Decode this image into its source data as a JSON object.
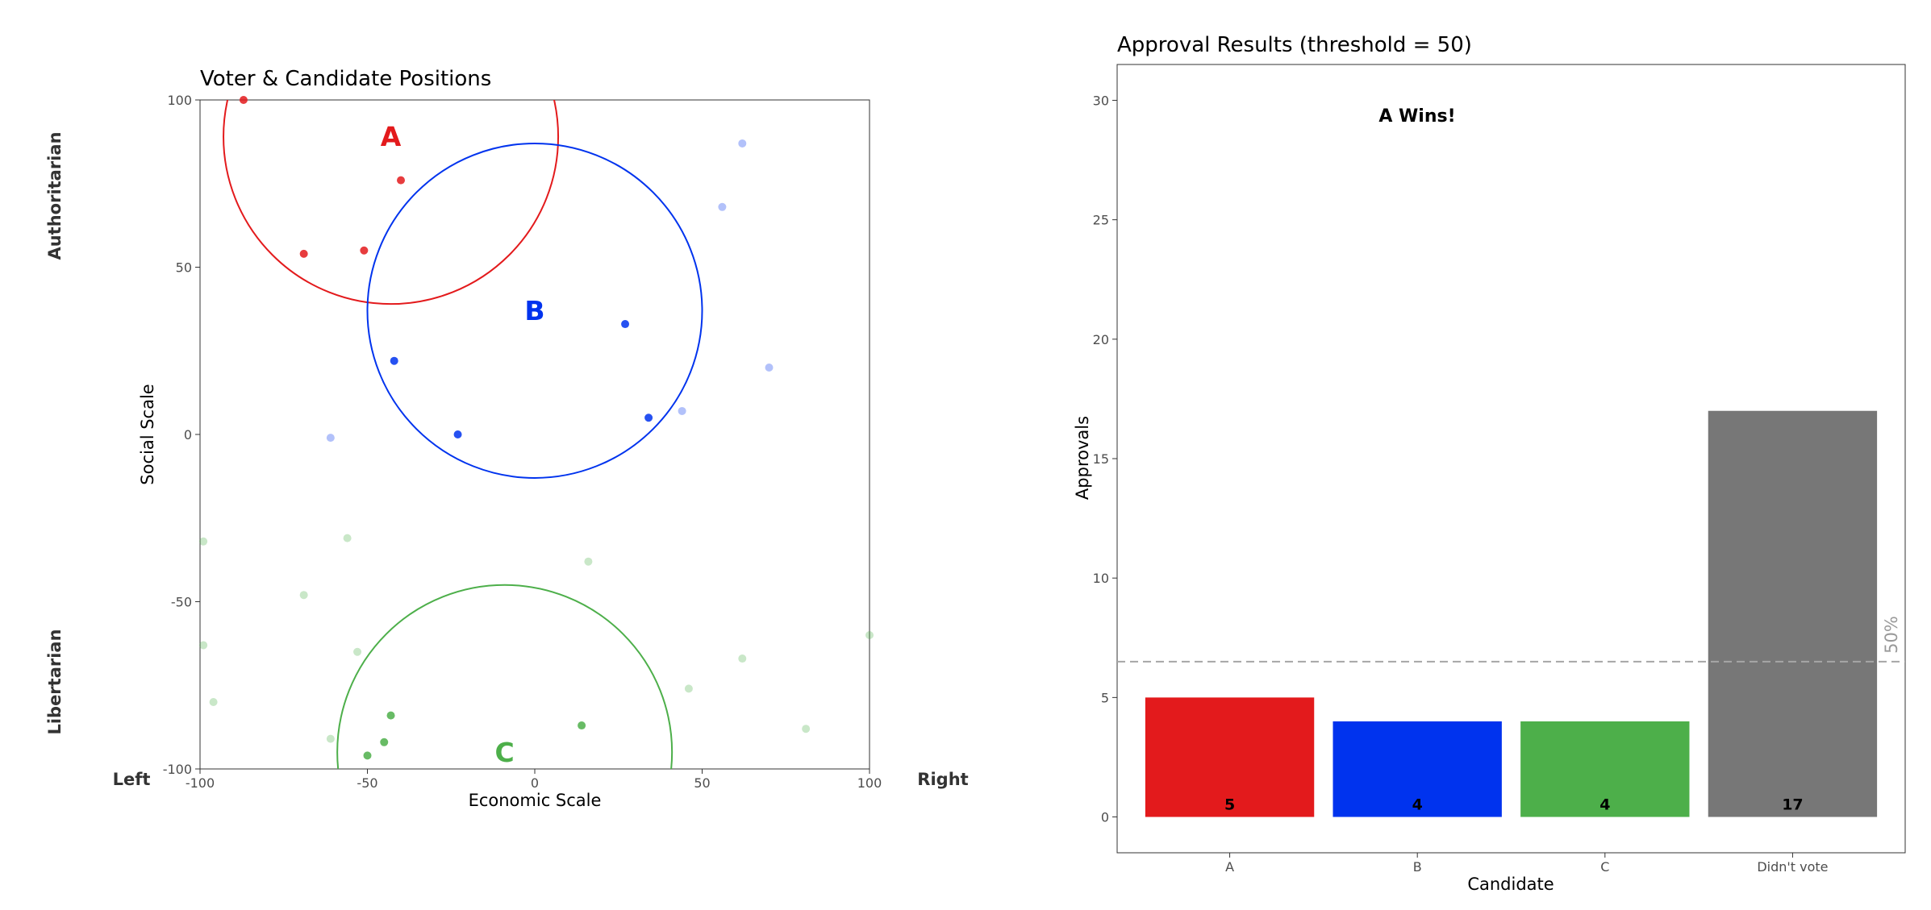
{
  "colors": {
    "A": "#e31a1c",
    "B": "#0033ee",
    "C": "#4daf4a",
    "none": "#777777"
  },
  "chart_data": [
    {
      "type": "scatter",
      "title": "Voter & Candidate Positions",
      "xlabel": "Economic Scale",
      "ylabel": "Social Scale",
      "xlim": [
        -100,
        100
      ],
      "ylim": [
        -100,
        100
      ],
      "xticks": [
        -100,
        -50,
        0,
        50,
        100
      ],
      "yticks": [
        -100,
        -50,
        0,
        50,
        100
      ],
      "x_end_labels": {
        "left": "Left",
        "right": "Right"
      },
      "y_end_labels": {
        "top": "Authoritarian",
        "bottom": "Libertarian"
      },
      "grid": false,
      "candidates": [
        {
          "name": "A",
          "x": -43,
          "y": 89,
          "approval_radius": 50
        },
        {
          "name": "B",
          "x": 0,
          "y": 37,
          "approval_radius": 50
        },
        {
          "name": "C",
          "x": -9,
          "y": -95,
          "approval_radius": 50
        }
      ],
      "voters": [
        {
          "x": -87,
          "y": 100,
          "group": "A"
        },
        {
          "x": -40,
          "y": 76,
          "group": "A"
        },
        {
          "x": -69,
          "y": 54,
          "group": "A"
        },
        {
          "x": -51,
          "y": 55,
          "group": "A"
        },
        {
          "x": 27,
          "y": 33,
          "group": "B"
        },
        {
          "x": -42,
          "y": 22,
          "group": "B"
        },
        {
          "x": 34,
          "y": 5,
          "group": "B"
        },
        {
          "x": -23,
          "y": 0,
          "group": "B"
        },
        {
          "x": 62,
          "y": 87,
          "group": "B",
          "voted": false
        },
        {
          "x": 56,
          "y": 68,
          "group": "B",
          "voted": false
        },
        {
          "x": 70,
          "y": 20,
          "group": "B",
          "voted": false
        },
        {
          "x": 44,
          "y": 7,
          "group": "B",
          "voted": false
        },
        {
          "x": -61,
          "y": -1,
          "group": "B",
          "voted": false
        },
        {
          "x": -43,
          "y": -84,
          "group": "C"
        },
        {
          "x": 14,
          "y": -87,
          "group": "C"
        },
        {
          "x": -45,
          "y": -92,
          "group": "C"
        },
        {
          "x": -50,
          "y": -96,
          "group": "C"
        },
        {
          "x": -99,
          "y": -32,
          "group": "C",
          "voted": false
        },
        {
          "x": -56,
          "y": -31,
          "group": "C",
          "voted": false
        },
        {
          "x": 16,
          "y": -38,
          "group": "C",
          "voted": false
        },
        {
          "x": -69,
          "y": -48,
          "group": "C",
          "voted": false
        },
        {
          "x": -99,
          "y": -63,
          "group": "C",
          "voted": false
        },
        {
          "x": -53,
          "y": -65,
          "group": "C",
          "voted": false
        },
        {
          "x": 100,
          "y": -60,
          "group": "C",
          "voted": false
        },
        {
          "x": 62,
          "y": -67,
          "group": "C",
          "voted": false
        },
        {
          "x": 46,
          "y": -76,
          "group": "C",
          "voted": false
        },
        {
          "x": -96,
          "y": -80,
          "group": "C",
          "voted": false
        },
        {
          "x": 81,
          "y": -88,
          "group": "C",
          "voted": false
        },
        {
          "x": -61,
          "y": -91,
          "group": "C",
          "voted": false
        }
      ]
    },
    {
      "type": "bar",
      "title": "Approval Results (threshold = 50)",
      "xlabel": "Candidate",
      "ylabel": "Approvals",
      "categories": [
        "A",
        "B",
        "C",
        "Didn't vote"
      ],
      "values": [
        5,
        4,
        4,
        17
      ],
      "bar_colors": [
        "#e31a1c",
        "#0033ee",
        "#4daf4a",
        "#777777"
      ],
      "ylim": [
        -1.5,
        31.5
      ],
      "yticks": [
        0,
        5,
        10,
        15,
        20,
        25,
        30
      ],
      "reference_line": {
        "value": 6.5,
        "label": "50%"
      },
      "annotation": "A Wins!",
      "grid": false
    }
  ]
}
